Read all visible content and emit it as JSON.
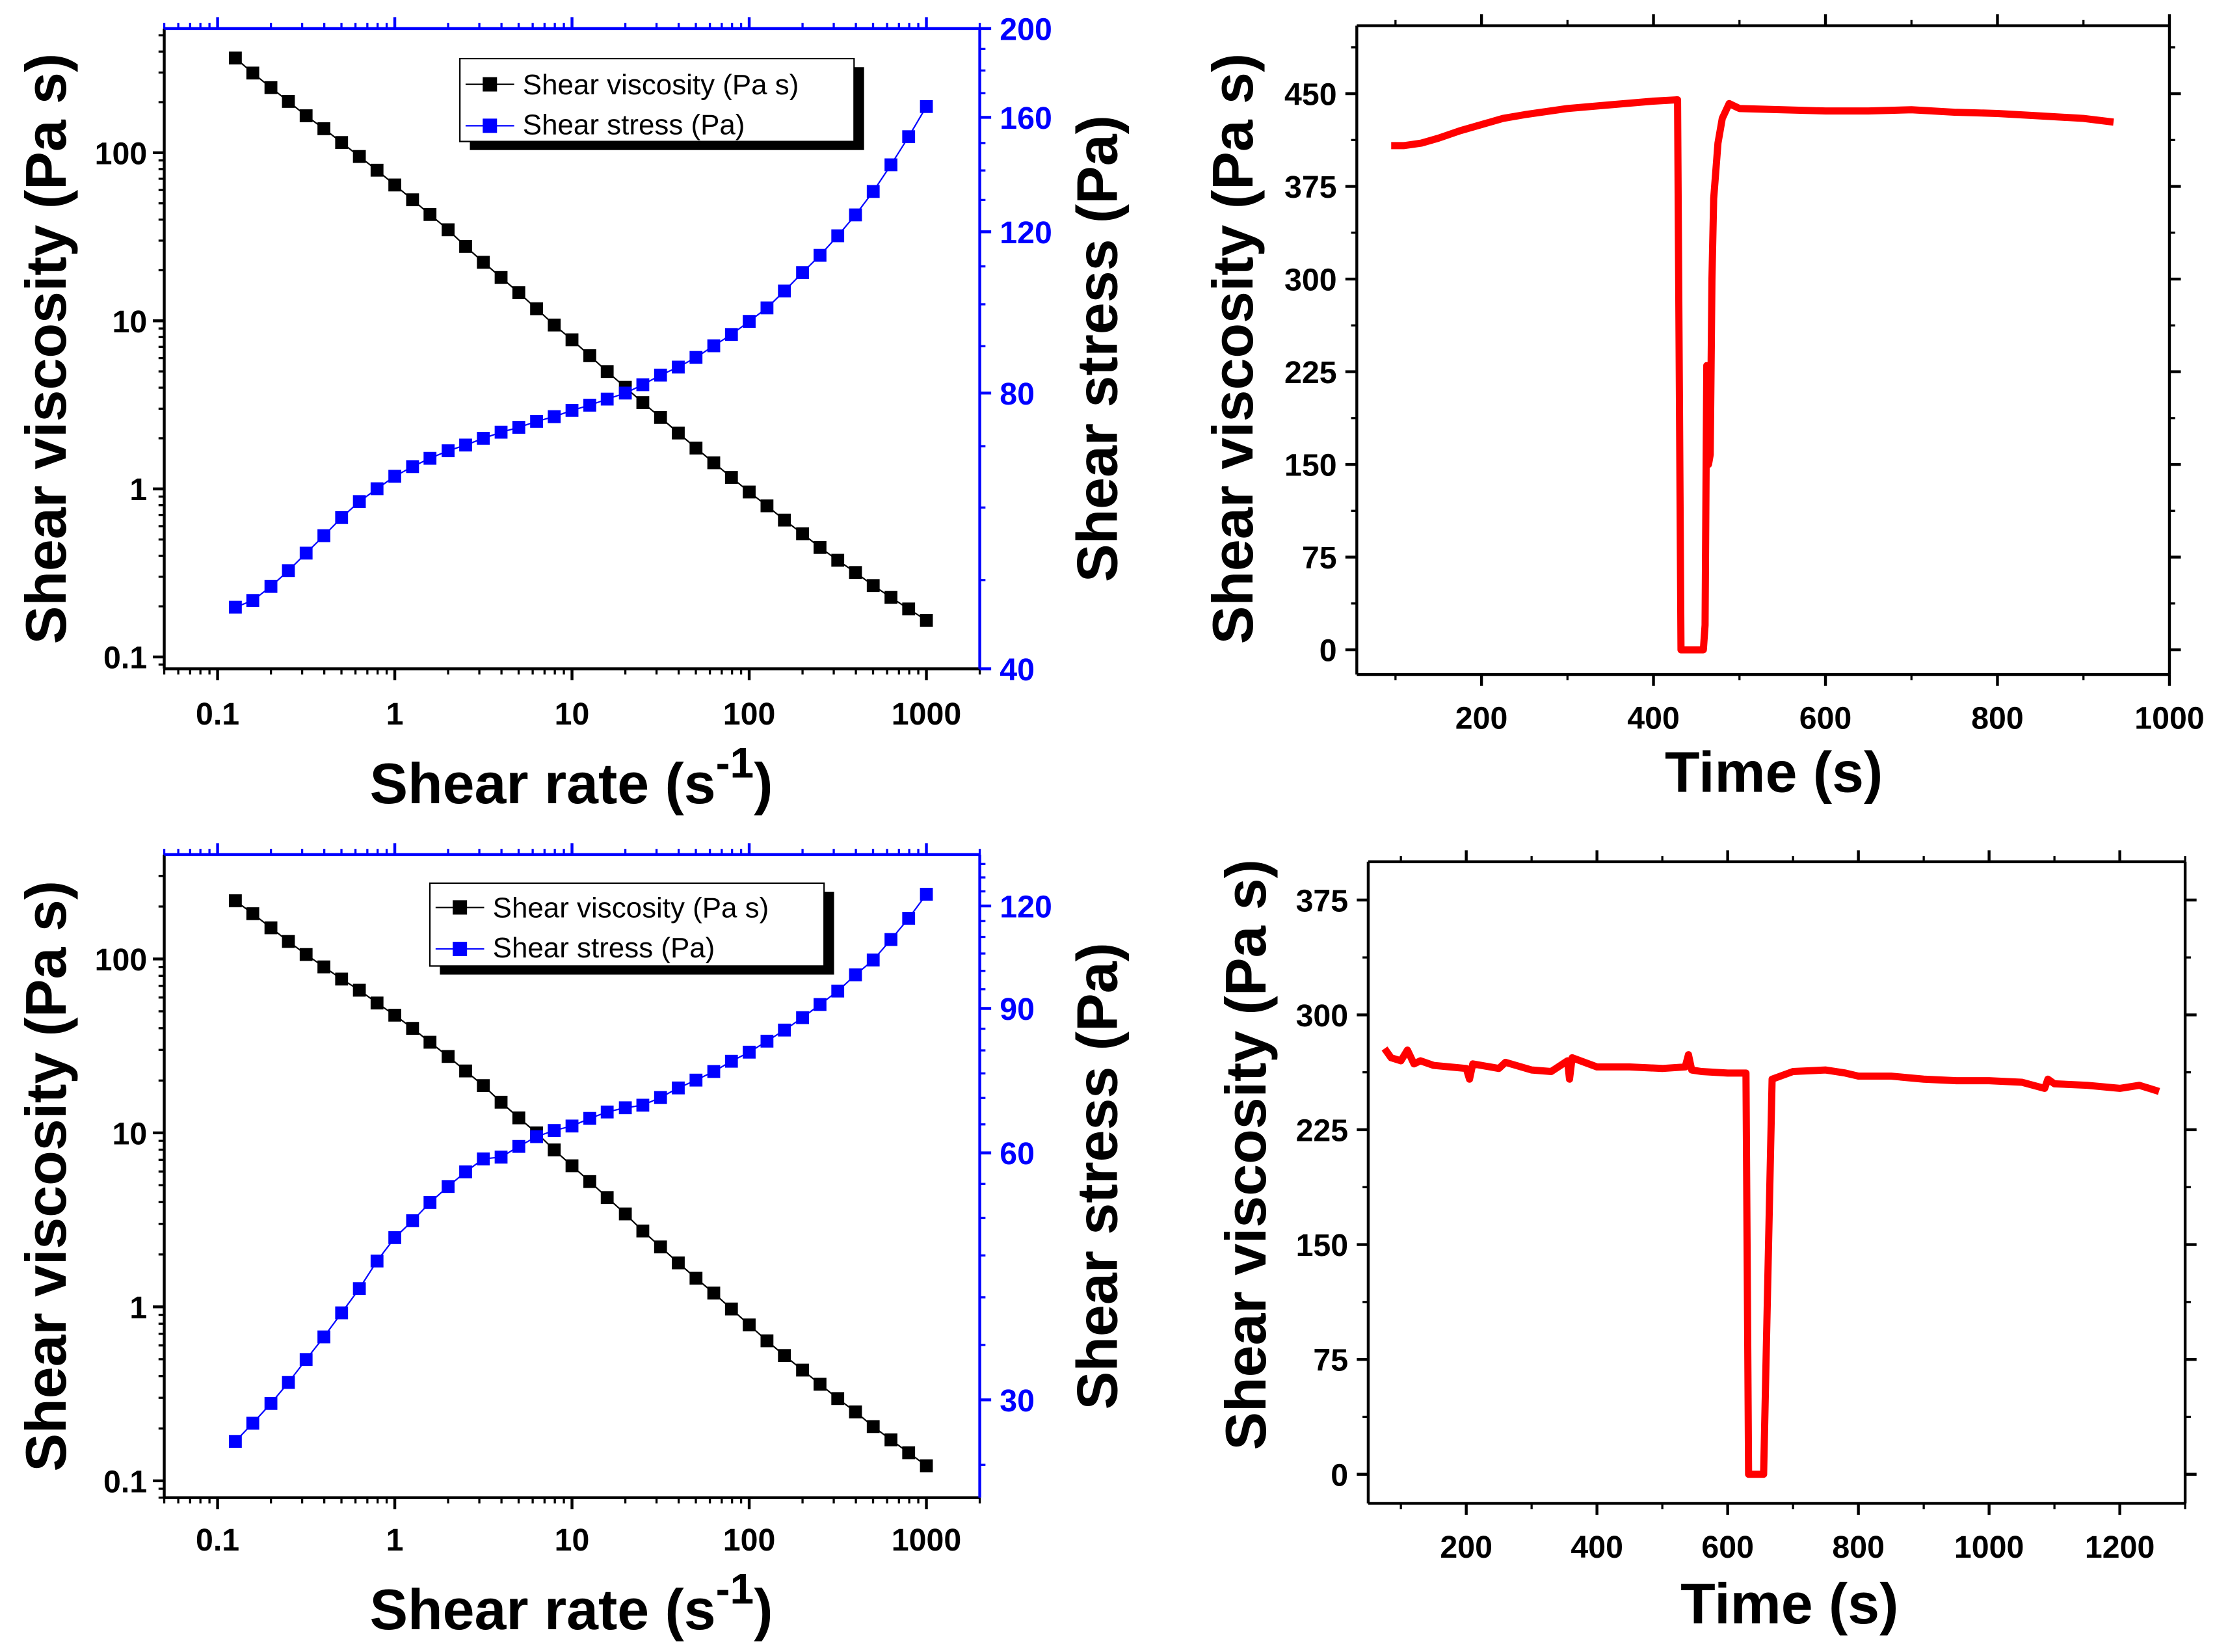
{
  "chart_data": [
    {
      "type": "scatter",
      "panel": "top-left",
      "xlabel": "Shear rate (s",
      "xlabel_sup": "-1",
      "xlabel_end": ")",
      "ylabel": "Shear viscosity (Pa s)",
      "y2label": "Shear stress (Pa)",
      "xscale": "log",
      "yscale": "log",
      "y2scale": "log",
      "xlim": [
        0.05,
        2000
      ],
      "ylim": [
        0.085,
        548
      ],
      "y2lim": [
        40,
        200
      ],
      "xticks": [
        0.1,
        1,
        10,
        100,
        1000
      ],
      "xtick_labels": [
        "0.1",
        "1",
        "10",
        "100",
        "1000"
      ],
      "yticks": [
        0.1,
        1,
        10,
        100
      ],
      "ytick_labels": [
        "0.1",
        "1",
        "10",
        "100"
      ],
      "y2ticks": [
        40,
        80,
        120,
        160,
        200
      ],
      "y2tick_labels": [
        "40",
        "80",
        "120",
        "160",
        "200"
      ],
      "y2minor_step": 10,
      "legend": "top-center",
      "x": [
        0.126,
        0.158,
        0.2,
        0.251,
        0.316,
        0.398,
        0.501,
        0.631,
        0.794,
        1,
        1.26,
        1.58,
        2,
        2.51,
        3.16,
        3.98,
        5.01,
        6.31,
        7.94,
        10,
        12.6,
        15.8,
        20,
        25.1,
        31.6,
        39.8,
        50.1,
        63.1,
        79.4,
        100,
        126,
        158,
        200,
        251,
        316,
        398,
        501,
        631,
        794,
        1000
      ],
      "series": [
        {
          "name": "Shear viscosity (Pa s)",
          "axis": "left",
          "color": "#000000",
          "values": [
            366,
            298,
            244,
            202,
            166,
            139,
            115,
            95,
            78.7,
            64.3,
            52.5,
            42.9,
            34.8,
            27.7,
            22.3,
            18.1,
            14.7,
            11.8,
            9.44,
            7.71,
            6.2,
            4.99,
            4.02,
            3.26,
            2.66,
            2.15,
            1.75,
            1.43,
            1.17,
            0.958,
            0.793,
            0.652,
            0.541,
            0.448,
            0.376,
            0.318,
            0.266,
            0.226,
            0.193,
            0.165
          ]
        },
        {
          "name": "Shear stress (Pa)",
          "axis": "right",
          "color": "#0000ff",
          "values": [
            46.7,
            47.5,
            49.2,
            51.2,
            53.5,
            55.9,
            58.5,
            60.9,
            62.9,
            64.9,
            66.5,
            67.9,
            69.2,
            70.2,
            71.4,
            72.5,
            73.4,
            74.5,
            75.4,
            76.6,
            77.6,
            78.8,
            80.0,
            81.7,
            83.7,
            85.4,
            87.5,
            90.1,
            92.7,
            95.8,
            99.1,
            103.4,
            108.3,
            113.1,
            118.8,
            125.2,
            132.8,
            142.0,
            152.4,
            164.4
          ]
        }
      ]
    },
    {
      "type": "line",
      "panel": "top-right",
      "xlabel": "Time (s)",
      "ylabel": "Shear viscosity (Pa s)",
      "xscale": "linear",
      "yscale": "linear",
      "xlim": [
        55,
        1000
      ],
      "ylim": [
        -20,
        505
      ],
      "xticks": [
        200,
        400,
        600,
        800,
        1000
      ],
      "xtick_labels": [
        "200",
        "400",
        "600",
        "800",
        "1000"
      ],
      "xminor_step": 100,
      "yticks": [
        0,
        75,
        150,
        225,
        300,
        375,
        450
      ],
      "ytick_labels": [
        "0",
        "75",
        "150",
        "225",
        "300",
        "375",
        "450"
      ],
      "yminor_step": 37.5,
      "x": [
        95,
        110,
        130,
        150,
        175,
        200,
        225,
        250,
        300,
        350,
        400,
        426,
        428,
        432,
        458,
        460,
        462,
        464,
        466,
        468,
        470,
        475,
        480,
        488,
        500,
        550,
        600,
        650,
        700,
        750,
        800,
        850,
        900,
        935
      ],
      "series": [
        {
          "name": "Shear viscosity",
          "axis": "left",
          "color": "#ff0000",
          "values": [
            408,
            408,
            410,
            414,
            420,
            425,
            430,
            433,
            438,
            441,
            444,
            445,
            445,
            0,
            0,
            20,
            230,
            150,
            158,
            300,
            365,
            410,
            430,
            442,
            438,
            437,
            436,
            436,
            437,
            435,
            434,
            432,
            430,
            427
          ]
        }
      ]
    },
    {
      "type": "scatter",
      "panel": "bottom-left",
      "xlabel": "Shear rate (s",
      "xlabel_sup": "-1",
      "xlabel_end": ")",
      "ylabel": "Shear viscosity (Pa s)",
      "y2label": "Shear stress (Pa)",
      "xscale": "log",
      "yscale": "log",
      "y2scale": "log",
      "xlim": [
        0.05,
        2000
      ],
      "ylim": [
        0.08,
        398
      ],
      "y2lim": [
        22.8,
        138.6
      ],
      "xticks": [
        0.1,
        1,
        10,
        100,
        1000
      ],
      "xtick_labels": [
        "0.1",
        "1",
        "10",
        "100",
        "1000"
      ],
      "yticks": [
        0.1,
        1,
        10,
        100
      ],
      "ytick_labels": [
        "0.1",
        "1",
        "10",
        "100"
      ],
      "y2ticks": [
        30,
        60,
        90,
        120
      ],
      "y2tick_labels": [
        "30",
        "60",
        "90",
        "120"
      ],
      "y2minor_step": 5,
      "legend": "top-center",
      "x": [
        0.126,
        0.158,
        0.2,
        0.251,
        0.316,
        0.398,
        0.501,
        0.631,
        0.794,
        1,
        1.26,
        1.58,
        2,
        2.51,
        3.16,
        3.98,
        5.01,
        6.31,
        7.94,
        10,
        12.6,
        15.8,
        20,
        25.1,
        31.6,
        39.8,
        50.1,
        63.1,
        79.4,
        100,
        126,
        158,
        200,
        251,
        316,
        398,
        501,
        631,
        794,
        1000
      ],
      "series": [
        {
          "name": "Shear viscosity (Pa s)",
          "axis": "left",
          "color": "#000000",
          "values": [
            216,
            182,
            151,
            126,
            106,
            90,
            76.6,
            66.1,
            55.8,
            47.5,
            39.9,
            33.2,
            27.5,
            22.7,
            18.7,
            15.0,
            12.2,
            10.0,
            7.98,
            6.47,
            5.25,
            4.25,
            3.42,
            2.73,
            2.21,
            1.79,
            1.46,
            1.2,
            0.972,
            0.787,
            0.638,
            0.525,
            0.433,
            0.359,
            0.297,
            0.249,
            0.205,
            0.172,
            0.145,
            0.122
          ]
        },
        {
          "name": "Shear stress (Pa)",
          "axis": "right",
          "color": "#0000ff",
          "values": [
            26.7,
            28.1,
            29.7,
            31.5,
            33.6,
            35.8,
            38.3,
            41.0,
            44.3,
            47.3,
            49.6,
            52.2,
            54.6,
            56.9,
            59.0,
            59.3,
            61.1,
            62.8,
            63.9,
            64.7,
            66.1,
            67.3,
            68.1,
            68.6,
            70.1,
            72.0,
            73.6,
            75.4,
            77.6,
            79.6,
            82.1,
            84.7,
            87.7,
            91.0,
            94.5,
            98.9,
            103.1,
            109.2,
            115.9,
            124.0
          ]
        }
      ]
    },
    {
      "type": "line",
      "panel": "bottom-right",
      "xlabel": "Time (s)",
      "ylabel": "Shear viscosity (Pa s)",
      "xscale": "linear",
      "yscale": "linear",
      "xlim": [
        50,
        1300
      ],
      "ylim": [
        -19,
        400
      ],
      "xticks": [
        200,
        400,
        600,
        800,
        1000,
        1200
      ],
      "xtick_labels": [
        "200",
        "400",
        "600",
        "800",
        "1000",
        "1200"
      ],
      "xminor_step": 100,
      "yticks": [
        0,
        75,
        150,
        225,
        300,
        375
      ],
      "ytick_labels": [
        "0",
        "75",
        "150",
        "225",
        "300",
        "375"
      ],
      "yminor_step": 37.5,
      "x": [
        75,
        85,
        100,
        110,
        120,
        130,
        150,
        175,
        200,
        205,
        210,
        250,
        260,
        300,
        330,
        355,
        358,
        362,
        400,
        450,
        500,
        535,
        540,
        545,
        560,
        600,
        628,
        632,
        655,
        668,
        700,
        750,
        780,
        800,
        850,
        900,
        950,
        1000,
        1050,
        1085,
        1090,
        1100,
        1150,
        1200,
        1230,
        1260
      ],
      "series": [
        {
          "name": "Shear viscosity",
          "axis": "left",
          "color": "#ff0000",
          "values": [
            278,
            272,
            270,
            277,
            268,
            270,
            267,
            266,
            265,
            258,
            268,
            265,
            269,
            264,
            263,
            270,
            258,
            272,
            266,
            266,
            265,
            266,
            274,
            264,
            263,
            262,
            262,
            0,
            0,
            258,
            263,
            264,
            262,
            260,
            260,
            258,
            257,
            257,
            256,
            252,
            258,
            255,
            254,
            252,
            254,
            250
          ]
        }
      ]
    }
  ]
}
